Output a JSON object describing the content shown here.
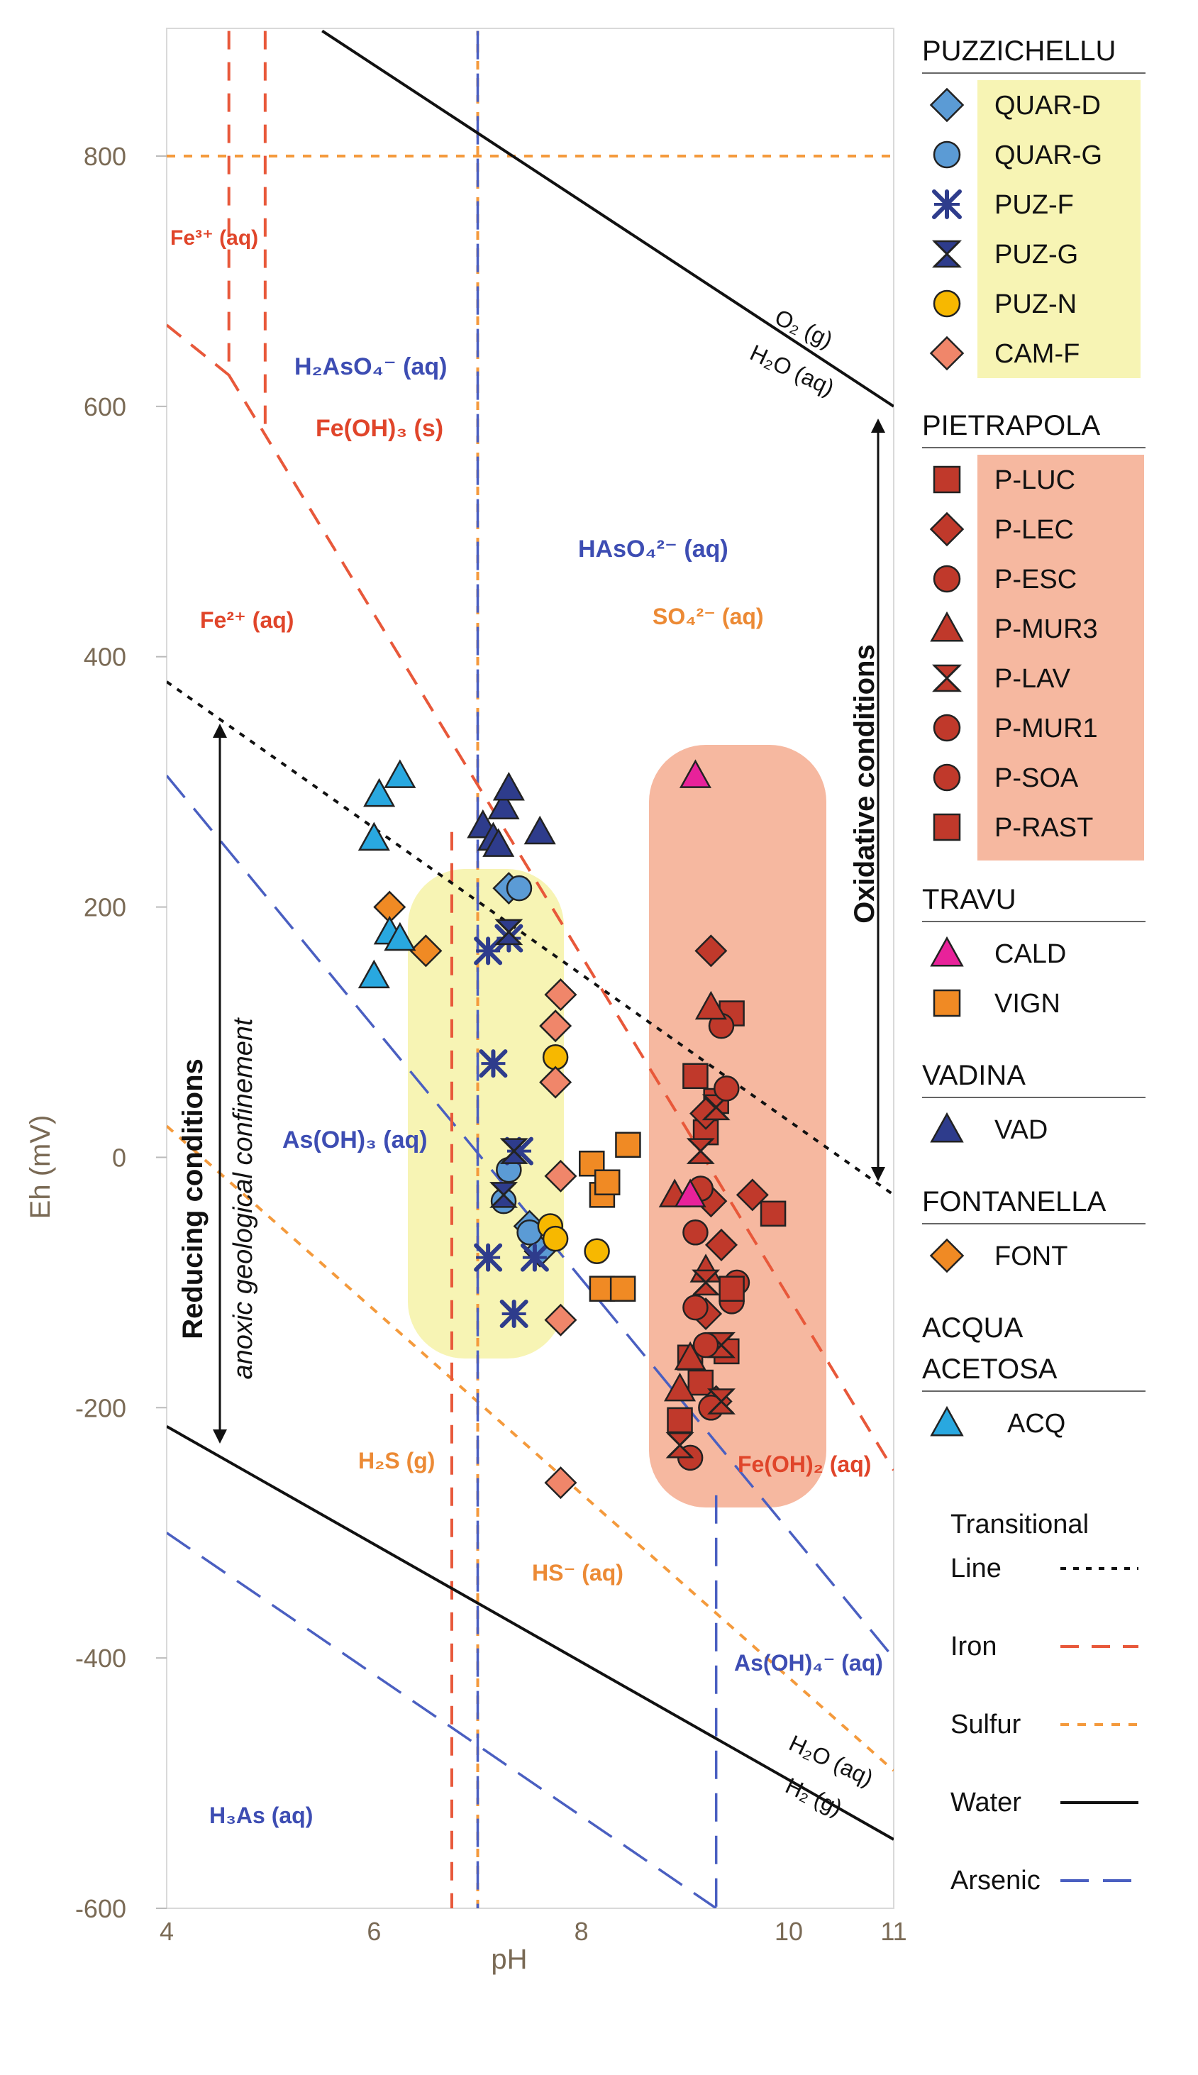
{
  "chart_data": {
    "type": "scatter",
    "xlabel": "pH",
    "ylabel": "Eh (mV)",
    "xlim": [
      4,
      11
    ],
    "ylim": [
      -600,
      900
    ],
    "x_ticks": [
      4,
      6,
      8,
      10,
      11
    ],
    "y_ticks": [
      -600,
      -400,
      -200,
      0,
      200,
      400,
      600,
      800
    ],
    "colors": {
      "puzzichellu_light": "#5b9bd5",
      "navy": "#2e3c8c",
      "gold": "#f7b800",
      "salmon": "#f0866a",
      "red": "#c0392b",
      "magenta": "#e8229a",
      "orange": "#f08a24",
      "cyan": "#29a8e0",
      "iron_line": "#e8583a",
      "sulfur_line": "#f49a3c",
      "arsenic_line": "#4a5fc1",
      "water_line": "#111111",
      "yellow_zone": "#f7f4b4",
      "red_zone": "#f6b8a0",
      "blue_label": "#3d4db3",
      "red_label": "#e0452a",
      "orange_label": "#ec8a35"
    },
    "field_labels": {
      "fe3": "Fe³⁺ (aq)",
      "h2aso4": "H₂AsO₄⁻ (aq)",
      "feoh3": "Fe(OH)₃ (s)",
      "haso4": "HAsO₄²⁻ (aq)",
      "so4": "SO₄²⁻ (aq)",
      "fe2": "Fe²⁺ (aq)",
      "asoh3": "As(OH)₃ (aq)",
      "h2s": "H₂S (g)",
      "hs": "HS⁻ (aq)",
      "feoh2": "Fe(OH)₂ (aq)",
      "asoh4": "As(OH)₄⁻ (aq)",
      "h3as": "H₃As (aq)",
      "o2_top": "O₂ (g)",
      "h2o_top": "H₂O (aq)",
      "h2o_bottom": "H₂O (aq)",
      "h2_bottom": "H₂ (g)"
    },
    "annotations": {
      "oxidative": "Oxidative conditions",
      "reducing": "Reducing conditions",
      "anoxic": "anoxic geological confinement"
    },
    "legend_groups": [
      {
        "title": "PUZZICHELLU",
        "entries": [
          "QUAR-D",
          "QUAR-G",
          "PUZ-F",
          "PUZ-G",
          "PUZ-N",
          "CAM-F"
        ]
      },
      {
        "title": "PIETRAPOLA",
        "entries": [
          "P-LUC",
          "P-LEC",
          "P-ESC",
          "P-MUR3",
          "P-LAV",
          "P-MUR1",
          "P-SOA",
          "P-RAST"
        ]
      },
      {
        "title": "TRAVU",
        "entries": [
          "CALD",
          "VIGN"
        ]
      },
      {
        "title": "VADINA",
        "entries": [
          "VAD"
        ]
      },
      {
        "title": "FONTANELLA",
        "entries": [
          "FONT"
        ]
      },
      {
        "title": "ACQUA",
        "title2": "ACETOSA",
        "entries": [
          "ACQ"
        ]
      }
    ],
    "line_legend": {
      "transitional": "Transitional",
      "transitional2": "Line",
      "iron": "Iron",
      "sulfur": "Sulfur",
      "water": "Water",
      "arsenic": "Arsenic"
    },
    "series": [
      {
        "name": "QUAR-D",
        "points": [
          [
            7.3,
            215
          ],
          [
            7.5,
            -55
          ],
          [
            7.6,
            -75
          ]
        ]
      },
      {
        "name": "QUAR-G",
        "points": [
          [
            7.4,
            215
          ],
          [
            7.3,
            -10
          ],
          [
            7.25,
            -35
          ],
          [
            7.5,
            -60
          ]
        ]
      },
      {
        "name": "PUZ-F",
        "points": [
          [
            7.1,
            165
          ],
          [
            7.15,
            75
          ],
          [
            7.3,
            175
          ],
          [
            7.4,
            5
          ],
          [
            7.1,
            -80
          ],
          [
            7.55,
            -80
          ],
          [
            7.35,
            -125
          ]
        ]
      },
      {
        "name": "PUZ-G",
        "points": [
          [
            7.3,
            180
          ],
          [
            7.35,
            5
          ],
          [
            7.25,
            -30
          ]
        ]
      },
      {
        "name": "PUZ-N",
        "points": [
          [
            7.75,
            80
          ],
          [
            7.7,
            -55
          ],
          [
            7.75,
            -65
          ],
          [
            8.15,
            -75
          ]
        ]
      },
      {
        "name": "CAM-F",
        "points": [
          [
            7.8,
            130
          ],
          [
            7.75,
            105
          ],
          [
            7.75,
            60
          ],
          [
            7.8,
            -15
          ],
          [
            7.8,
            -130
          ],
          [
            7.8,
            -260
          ]
        ]
      },
      {
        "name": "P-LUC",
        "points": [
          [
            9.1,
            65
          ],
          [
            9.2,
            20
          ],
          [
            9.3,
            45
          ],
          [
            9.45,
            115
          ],
          [
            9.85,
            -45
          ],
          [
            9.4,
            -155
          ],
          [
            9.05,
            -160
          ],
          [
            8.95,
            -210
          ],
          [
            9.15,
            -180
          ]
        ]
      },
      {
        "name": "P-LEC",
        "points": [
          [
            9.25,
            165
          ],
          [
            9.25,
            -35
          ],
          [
            9.35,
            -70
          ],
          [
            9.65,
            -30
          ],
          [
            9.2,
            -125
          ],
          [
            9.3,
            -195
          ],
          [
            9.2,
            35
          ]
        ]
      },
      {
        "name": "P-ESC",
        "points": [
          [
            9.35,
            105
          ],
          [
            9.15,
            -25
          ],
          [
            9.1,
            -120
          ],
          [
            9.45,
            -115
          ],
          [
            9.05,
            -240
          ],
          [
            9.25,
            -200
          ]
        ]
      },
      {
        "name": "P-MUR3",
        "points": [
          [
            9.25,
            120
          ],
          [
            8.9,
            -30
          ],
          [
            9.2,
            -90
          ],
          [
            9.05,
            -160
          ],
          [
            8.95,
            -185
          ]
        ]
      },
      {
        "name": "P-LAV",
        "points": [
          [
            9.15,
            5
          ],
          [
            9.3,
            40
          ],
          [
            9.2,
            -100
          ],
          [
            9.35,
            -195
          ],
          [
            8.95,
            -230
          ],
          [
            9.35,
            -150
          ]
        ]
      },
      {
        "name": "P-MUR1",
        "points": [
          [
            9.4,
            55
          ],
          [
            9.1,
            -60
          ]
        ]
      },
      {
        "name": "P-SOA",
        "points": [
          [
            9.5,
            -100
          ],
          [
            9.2,
            -150
          ]
        ]
      },
      {
        "name": "P-RAST",
        "points": [
          [
            9.45,
            -105
          ]
        ]
      },
      {
        "name": "CALD",
        "points": [
          [
            9.1,
            305
          ],
          [
            9.05,
            -30
          ]
        ]
      },
      {
        "name": "VIGN",
        "points": [
          [
            8.1,
            -5
          ],
          [
            8.2,
            -30
          ],
          [
            8.25,
            -20
          ],
          [
            8.45,
            10
          ],
          [
            8.2,
            -105
          ],
          [
            8.4,
            -105
          ]
        ]
      },
      {
        "name": "VAD",
        "points": [
          [
            7.05,
            265
          ],
          [
            7.15,
            255
          ],
          [
            7.25,
            280
          ],
          [
            7.3,
            295
          ],
          [
            7.6,
            260
          ],
          [
            7.2,
            250
          ]
        ]
      },
      {
        "name": "FONT",
        "points": [
          [
            6.15,
            200
          ],
          [
            6.5,
            165
          ]
        ]
      },
      {
        "name": "ACQ",
        "points": [
          [
            6.05,
            290
          ],
          [
            6.25,
            305
          ],
          [
            6.0,
            255
          ],
          [
            6.15,
            180
          ],
          [
            6.25,
            175
          ],
          [
            6.0,
            145
          ]
        ]
      }
    ]
  }
}
